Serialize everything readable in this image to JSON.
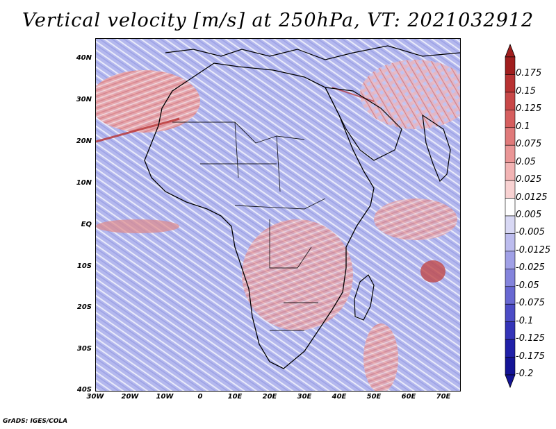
{
  "title": "Vertical velocity [m/s] at 250hPa, VT: 2021032912",
  "credit": "GrADS: IGES/COLA",
  "map": {
    "lat_labels": [
      "40N",
      "30N",
      "20N",
      "10N",
      "EQ",
      "10S",
      "20S",
      "30S",
      "40S"
    ],
    "lon_labels": [
      "30W",
      "20W",
      "10W",
      "0",
      "10E",
      "20E",
      "30E",
      "40E",
      "50E",
      "60E",
      "70E"
    ]
  },
  "colorbar": {
    "labels": [
      "0.175",
      "0.15",
      "0.125",
      "0.1",
      "0.075",
      "0.05",
      "0.025",
      "0.0125",
      "0.005",
      "-0.005",
      "-0.0125",
      "-0.025",
      "-0.05",
      "-0.075",
      "-0.1",
      "-0.125",
      "-0.175",
      "-0.2"
    ],
    "colors": [
      "#a01e1e",
      "#b83232",
      "#c84848",
      "#d65f5f",
      "#e07a7a",
      "#ea9696",
      "#f2b4b4",
      "#f8d2d2",
      "#ffffff",
      "#d8d8f4",
      "#bcbcee",
      "#a0a0e6",
      "#8484dc",
      "#6868d2",
      "#4c4cc6",
      "#3434b8",
      "#2020a8",
      "#141496"
    ]
  }
}
